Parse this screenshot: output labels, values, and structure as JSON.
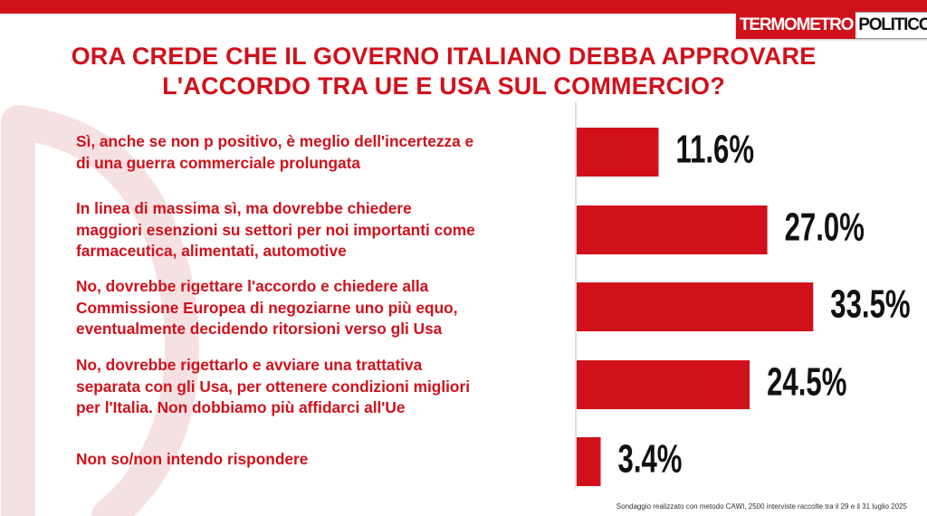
{
  "brand": {
    "logo_part1": "TERMOMETRO",
    "logo_part2": "POLITICO",
    "accent_color": "#d0111b"
  },
  "chart_data": {
    "type": "bar",
    "orientation": "horizontal",
    "title_lines": [
      "ORA CREDE CHE IL GOVERNO ITALIANO DEBBA APPROVARE",
      "L'ACCORDO TRA UE E USA SUL COMMERCIO?"
    ],
    "categories": [
      [
        "Sì, anche se non p positivo, è meglio dell'incertezza e",
        "di una guerra commerciale prolungata"
      ],
      [
        "In linea di massima sì,  ma dovrebbe chiedere",
        "maggiori esenzioni su settori per noi importanti come",
        "farmaceutica, alimentati, automotive"
      ],
      [
        "No, dovrebbe rigettare l'accordo e chiedere alla",
        "Commissione Europea di negoziarne uno più equo,",
        "eventualmente decidendo ritorsioni verso gli Usa"
      ],
      [
        "No, dovrebbe rigettarlo e avviare una trattativa",
        "separata con gli Usa, per ottenere condizioni migliori",
        "per l'Italia. Non dobbiamo più affidarci all'Ue"
      ],
      [
        "Non so/non intendo rispondere"
      ]
    ],
    "values": [
      11.6,
      27.0,
      33.5,
      24.5,
      3.4
    ],
    "value_labels": [
      "11.6%",
      "27.0%",
      "33.5%",
      "24.5%",
      "3.4%"
    ],
    "xlim": [
      0,
      40
    ],
    "bar_color": "#d0111b"
  },
  "footnote": "Sondaggio realizzato con metodo CAWI, 2500 interviste raccolte tra il 29 e il 31 luglio 2025"
}
